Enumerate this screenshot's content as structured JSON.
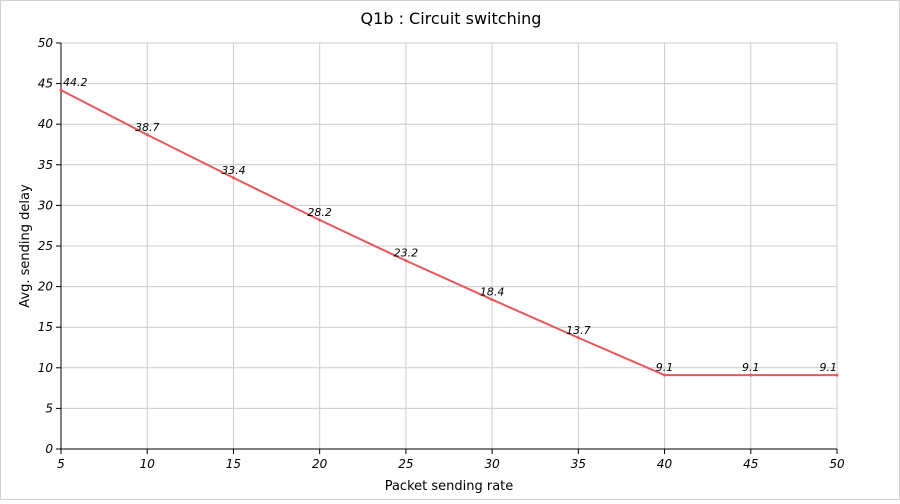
{
  "chart_data": {
    "type": "line",
    "title": "Q1b : Circuit switching",
    "xlabel": "Packet sending rate",
    "ylabel": "Avg. sending delay",
    "x": [
      5,
      10,
      15,
      20,
      25,
      30,
      35,
      40,
      45,
      50
    ],
    "series": [
      {
        "values": [
          44.2,
          38.7,
          33.4,
          28.2,
          23.2,
          18.4,
          13.7,
          9.1,
          9.1,
          9.1
        ]
      }
    ],
    "data_labels": [
      "44.2",
      "38.7",
      "33.4",
      "28.2",
      "23.2",
      "18.4",
      "13.7",
      "9.1",
      "9.1",
      "9.1"
    ],
    "xlim": [
      5,
      50
    ],
    "ylim": [
      0,
      50
    ],
    "xticks": [
      5,
      10,
      15,
      20,
      25,
      30,
      35,
      40,
      45,
      50
    ],
    "yticks": [
      0,
      5,
      10,
      15,
      20,
      25,
      30,
      35,
      40,
      45,
      50
    ],
    "grid": true,
    "legend": "none",
    "colors": {
      "line": "#e8585a",
      "grid": "#cccccc",
      "axis": "#000000"
    }
  }
}
